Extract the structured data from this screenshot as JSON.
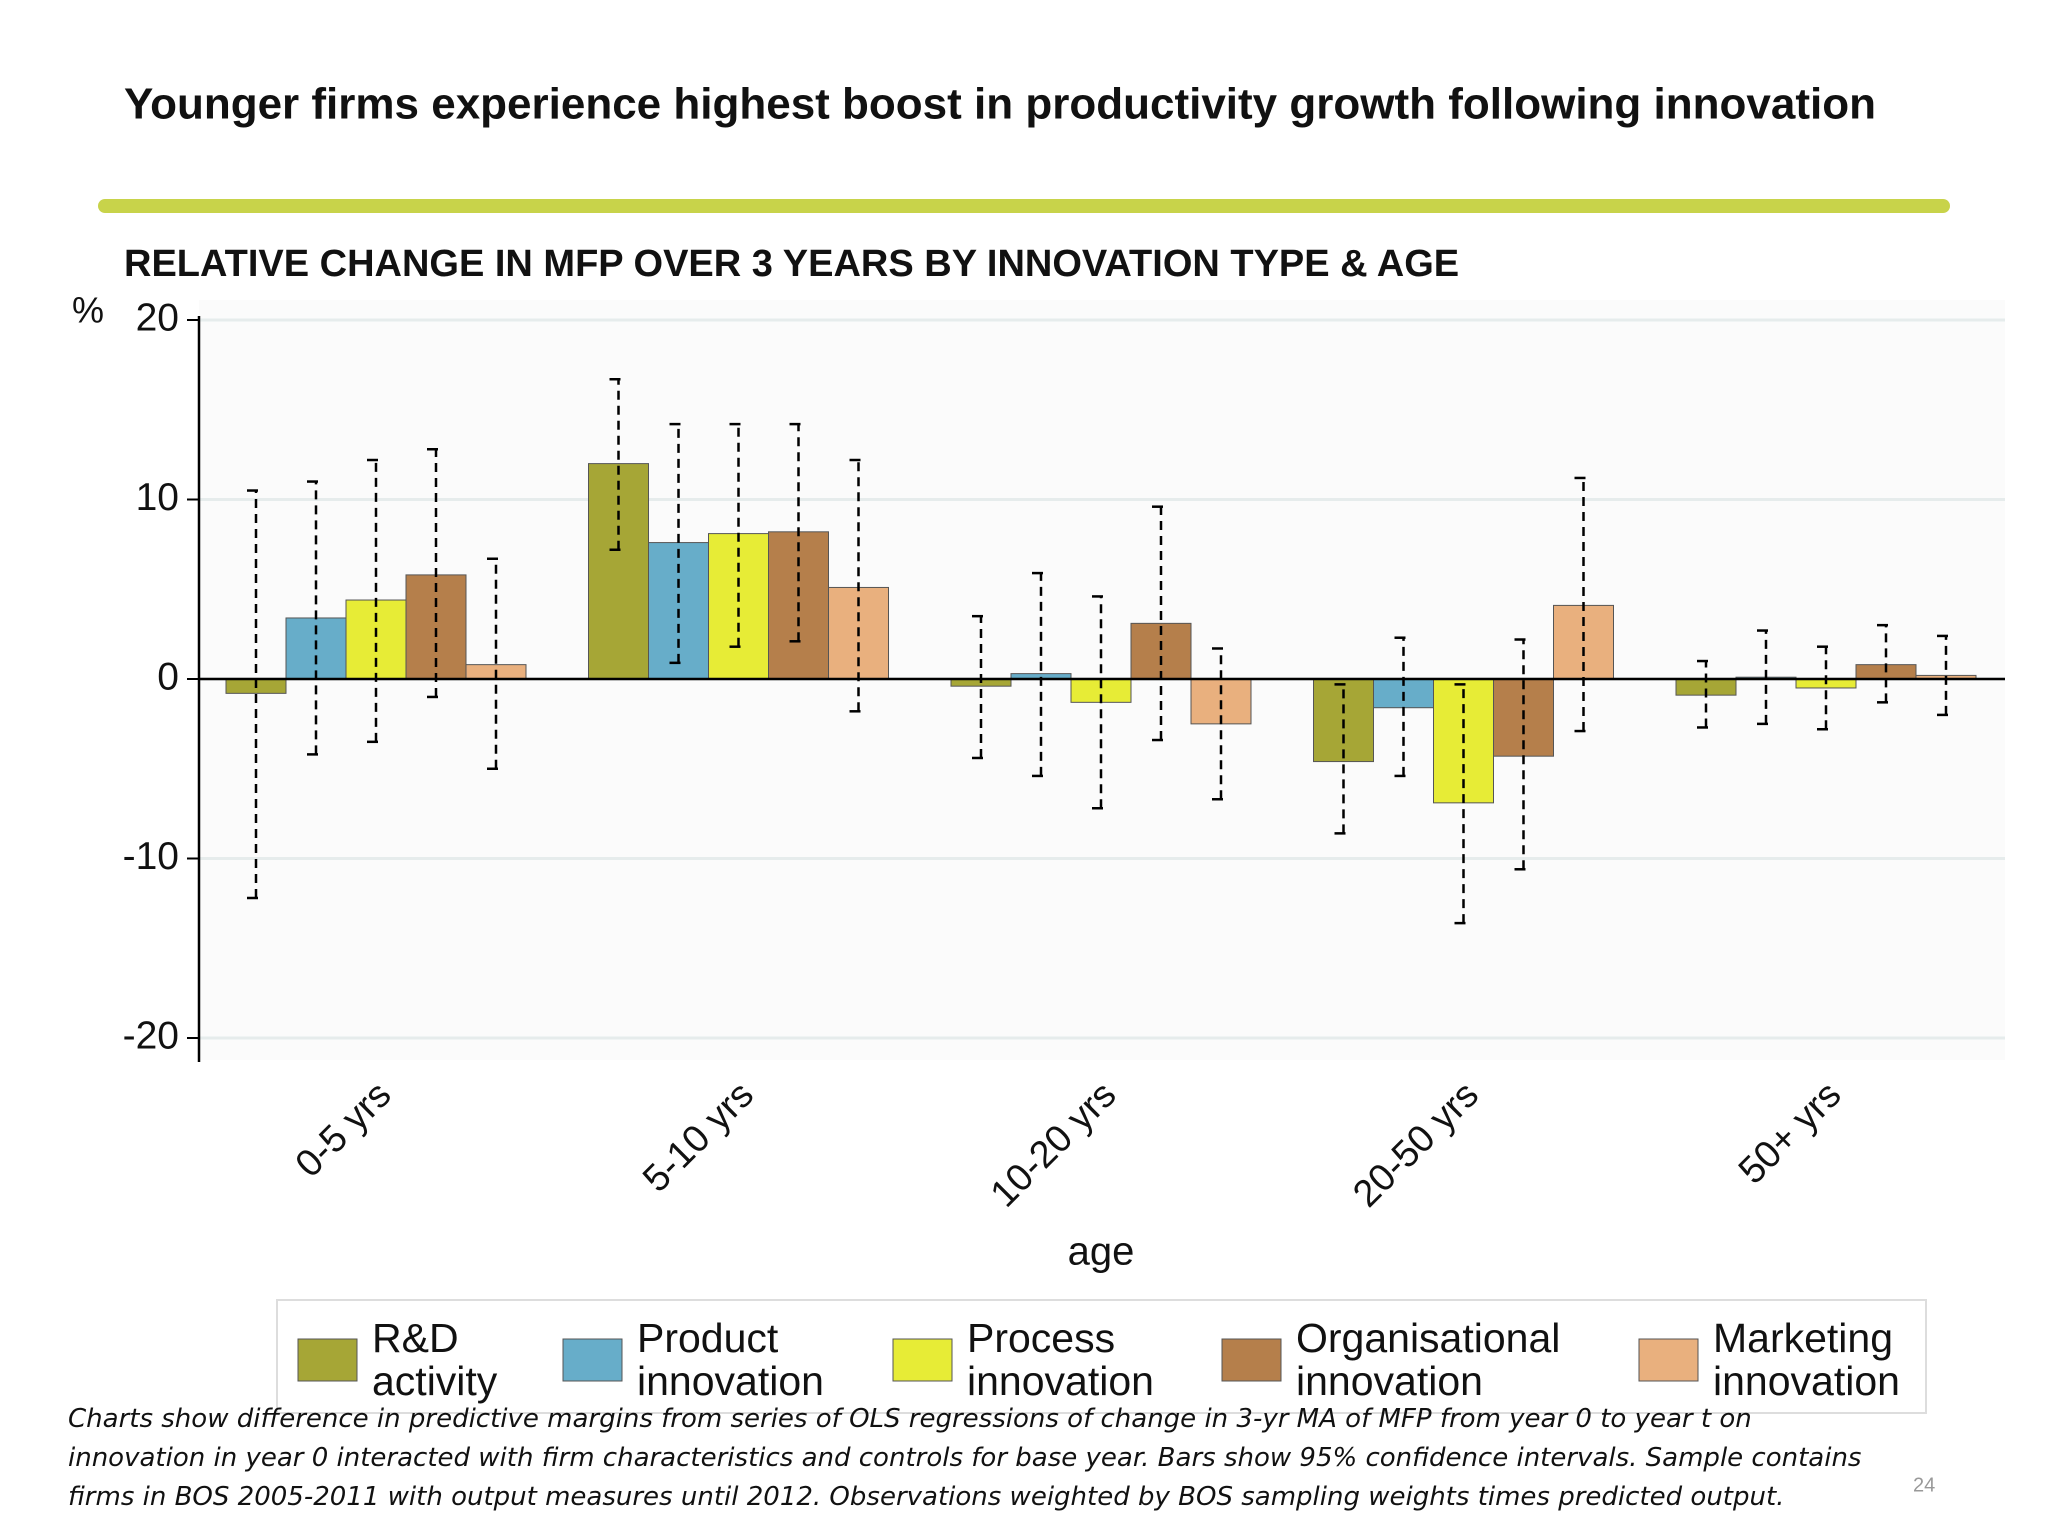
{
  "header": {
    "title": "Younger firms experience highest boost in productivity growth following innovation"
  },
  "chart_data": {
    "type": "bar",
    "title": "RELATIVE CHANGE IN MFP OVER 3 YEARS BY INNOVATION TYPE & AGE",
    "y_unit": "%",
    "x_label": "age",
    "categories": [
      "0-5 yrs",
      "5-10 yrs",
      "10-20 yrs",
      "20-50 yrs",
      "50+ yrs"
    ],
    "series": [
      {
        "name": "R&D activity",
        "color": "#a6a636",
        "values": [
          -0.8,
          12,
          -0.4,
          -4.6,
          -0.9
        ],
        "ci_low": [
          -12.2,
          7.2,
          -4.4,
          -8.6,
          -2.7
        ],
        "ci_high": [
          10.5,
          16.7,
          3.5,
          -0.3,
          1
        ]
      },
      {
        "name": "Product innovation",
        "color": "#67adc9",
        "values": [
          3.4,
          7.6,
          0.3,
          -1.6,
          0.1
        ],
        "ci_low": [
          -4.2,
          0.9,
          -5.4,
          -5.4,
          -2.5
        ],
        "ci_high": [
          11,
          14.2,
          5.9,
          2.3,
          2.7
        ]
      },
      {
        "name": "Process innovation",
        "color": "#e7ec36",
        "values": [
          4.4,
          8.1,
          -1.3,
          -6.9,
          -0.5
        ],
        "ci_low": [
          -3.5,
          1.8,
          -7.2,
          -13.6,
          -2.8
        ],
        "ci_high": [
          12.2,
          14.2,
          4.6,
          -0.3,
          1.8
        ]
      },
      {
        "name": "Organisational innovation",
        "color": "#b57f4b",
        "values": [
          5.8,
          8.2,
          3.1,
          -4.3,
          0.8
        ],
        "ci_low": [
          -1,
          2.1,
          -3.4,
          -10.6,
          -1.3
        ],
        "ci_high": [
          12.8,
          14.2,
          9.6,
          2.2,
          3
        ]
      },
      {
        "name": "Marketing innovation",
        "color": "#e9b07e",
        "values": [
          0.8,
          5.1,
          -2.5,
          4.1,
          0.2
        ],
        "ci_low": [
          -5,
          -1.8,
          -6.7,
          -2.9,
          -2
        ],
        "ci_high": [
          6.7,
          12.2,
          1.7,
          11.2,
          2.4
        ]
      }
    ],
    "ylim": [
      -20,
      20
    ],
    "yticks": [
      -20,
      -10,
      0,
      10,
      20
    ],
    "grid": true
  },
  "footnote": [
    "Charts show difference in predictive margins from series of OLS regressions of change in 3-yr MA of MFP from year 0 to year t on",
    "innovation in year 0 interacted with firm characteristics and controls for base year. Bars show 95% confidence intervals. Sample contains",
    "firms in BOS 2005-2011 with output measures until 2012. Observations weighted by BOS sampling weights times predicted output."
  ],
  "page_number": "24"
}
